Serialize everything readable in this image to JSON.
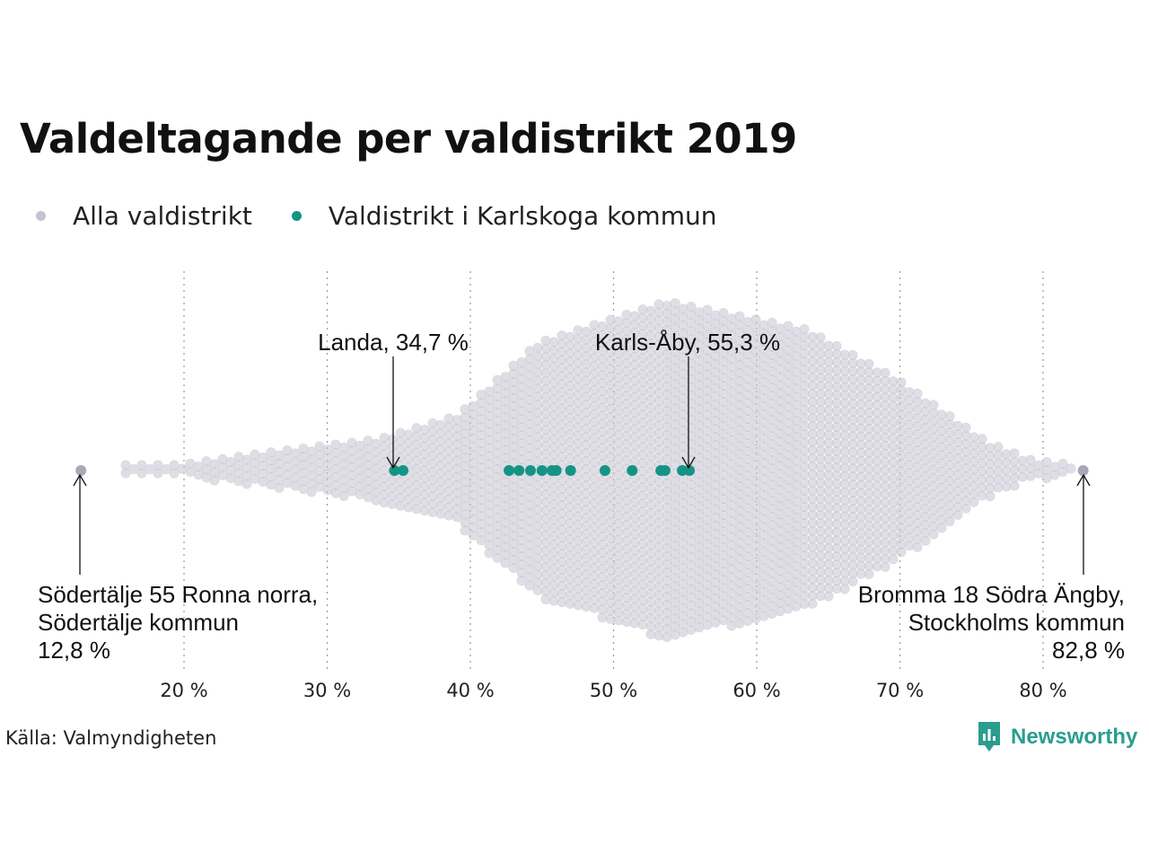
{
  "header": {
    "title": "Valdeltagande per valdistrikt 2019"
  },
  "legend": {
    "items": [
      {
        "label": "Alla valdistrikt",
        "color": "#c4c3cf"
      },
      {
        "label": "Valdistrikt i Karlskoga kommun",
        "color": "#159486"
      }
    ]
  },
  "chart_data": {
    "type": "scatter",
    "title": "Valdeltagande per valdistrikt 2019",
    "subtype": "beeswarm",
    "xlabel": "",
    "ylabel": "",
    "xlim": [
      12,
      84
    ],
    "x_ticks": [
      20,
      30,
      40,
      50,
      60,
      70,
      80
    ],
    "x_tick_labels": [
      "20 %",
      "30 %",
      "40 %",
      "50 %",
      "60 %",
      "70 %",
      "80 %"
    ],
    "grid": "vertical dotted",
    "legend_position": "top-left",
    "series": [
      {
        "name": "Alla valdistrikt",
        "color": "#c4c3cf",
        "distribution": "dense beeswarm of all voting districts, concentrated between 40 % and 65 %, peak around 53 %",
        "extremes": [
          12.8,
          82.8
        ]
      },
      {
        "name": "Valdistrikt i Karlskoga kommun",
        "color": "#159486",
        "values": [
          34.7,
          35.3,
          42.7,
          43.4,
          44.2,
          45.0,
          45.7,
          46.0,
          47.0,
          49.4,
          51.3,
          53.3,
          53.6,
          54.8,
          55.3
        ]
      }
    ],
    "annotations": [
      {
        "x": 34.7,
        "lines": [
          "Landa, 34,7 %"
        ]
      },
      {
        "x": 55.3,
        "lines": [
          "Karls-Åby, 55,3 %"
        ]
      },
      {
        "x": 12.8,
        "lines": [
          "Södertälje 55 Ronna norra,",
          "Södertälje kommun",
          "12,8 %"
        ]
      },
      {
        "x": 82.8,
        "lines": [
          "Bromma 18 Södra Ängby,",
          "Stockholms kommun",
          "82,8 %"
        ]
      }
    ]
  },
  "footer": {
    "source": "Källa: Valmyndigheten",
    "brand": "Newsworthy",
    "brand_color": "#2a9d8f"
  }
}
